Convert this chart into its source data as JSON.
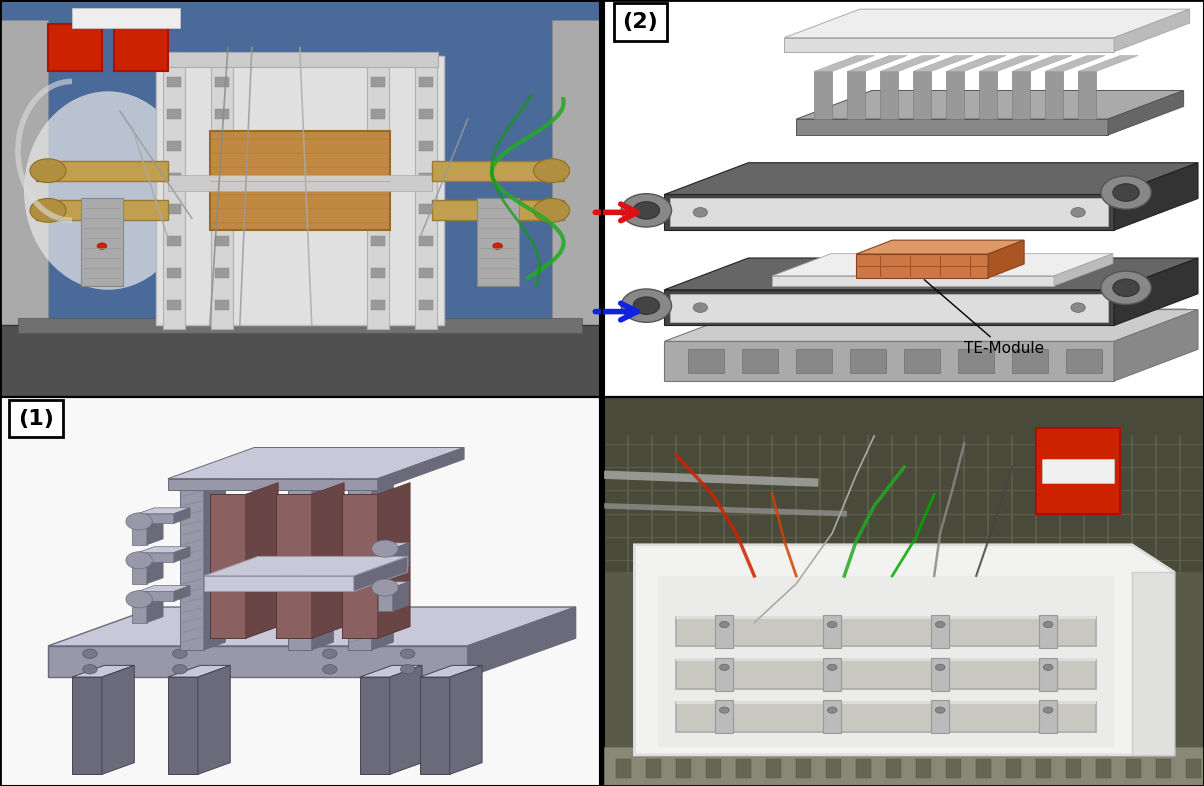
{
  "figure_width": 12.04,
  "figure_height": 7.86,
  "dpi": 100,
  "background_color": "#ffffff",
  "border_color": "#000000",
  "label_1": "(1)",
  "label_2": "(2)",
  "te_module_label": "TE-Module",
  "label_fontsize": 16,
  "annotation_fontsize": 11,
  "label_box_color": "#ffffff",
  "label_box_edgecolor": "#000000",
  "arrow_red_color": "#dd1111",
  "arrow_blue_color": "#1122dd",
  "outer_border_linewidth": 2.0,
  "inner_border_linewidth": 1.2,
  "tl_bg": "#5577aa",
  "tl_wall": "#4466aa",
  "tl_base": "#555555",
  "tl_frame_color": "#dddddd",
  "tl_copper": "#b87333",
  "tl_pipe": "#c8a850",
  "tl_red_box": "#cc2200",
  "bl_bg": "#f8f8f8",
  "bl_gray": "#9a9aaa",
  "bl_dark_gray": "#6a6a7a",
  "bl_plate": "#8a6060",
  "tr_bg": "#ffffff",
  "tr_dark": "#555555",
  "tr_mid": "#888888",
  "tr_light": "#cccccc",
  "tr_te_orange": "#cc7744",
  "br_bg": "#5a5a4a",
  "br_light_gray": "#888877",
  "br_white_foam": "#f0f0ee",
  "br_metal": "#ccccbb"
}
